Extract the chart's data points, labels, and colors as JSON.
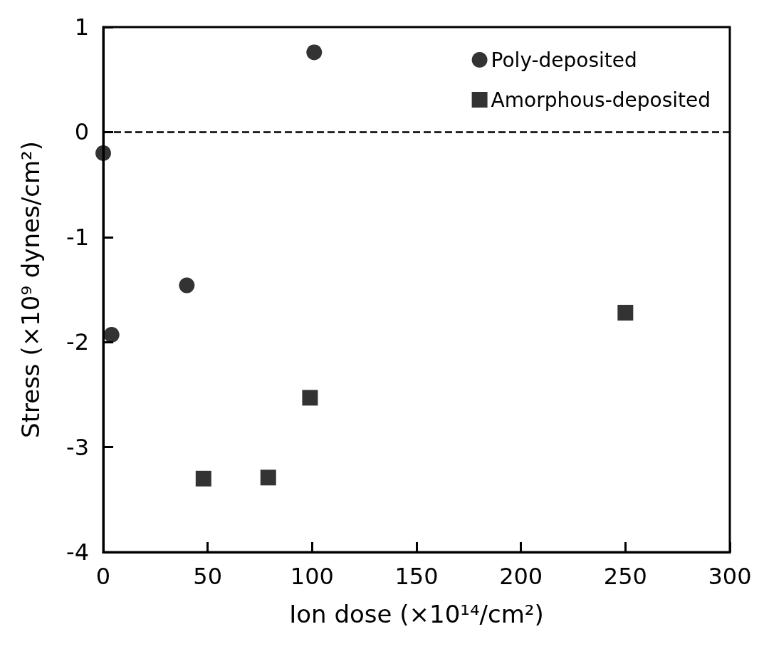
{
  "chart_data": {
    "type": "scatter",
    "xlabel": "Ion dose (×10¹⁴/cm²)",
    "ylabel": "Stress (×10⁹ dynes/cm²)",
    "xlim": [
      0,
      300
    ],
    "xticks": [
      0,
      50,
      100,
      150,
      200,
      250,
      300
    ],
    "ylim": [
      -4,
      1
    ],
    "yticks": [
      -4,
      -3,
      -2,
      -1,
      0,
      1
    ],
    "series": [
      {
        "name": "Poly-deposited",
        "color": "#000000",
        "marker": "circle",
        "x": [
          0,
          4,
          40,
          101
        ],
        "values": [
          -0.2,
          -1.93,
          -1.46,
          0.76
        ]
      },
      {
        "name": "Amorphous-deposited",
        "color": "#000000",
        "marker": "square",
        "x": [
          48,
          79,
          99,
          250
        ],
        "values": [
          -3.3,
          -3.29,
          -2.53,
          -1.72
        ]
      }
    ],
    "ref_lines": [
      {
        "axis": "y",
        "value": 0,
        "line_style": "dashed"
      }
    ],
    "legend": "top right",
    "grid": false
  }
}
